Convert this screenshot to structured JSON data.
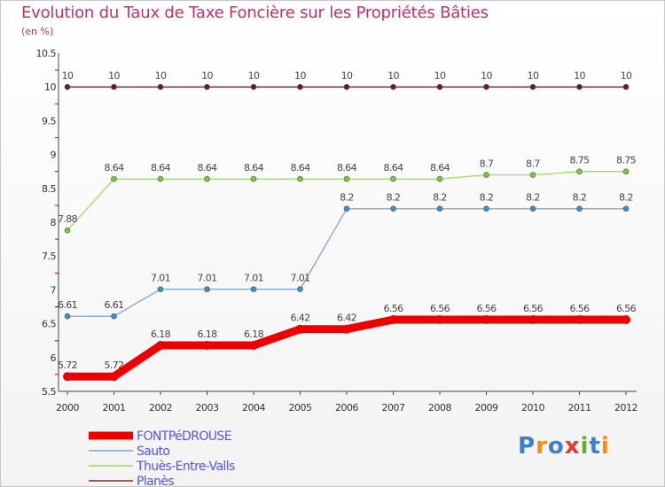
{
  "title": "Evolution du Taux de Taxe Foncière sur les Propriétés Bâties",
  "unit": "(en %)",
  "logo": {
    "text": "Proxiti",
    "letters": [
      "P",
      "r",
      "o",
      "x",
      "i",
      "t",
      "i"
    ],
    "colors": [
      "#3b7fd0",
      "#f08c1e",
      "#3b7fd0",
      "#e63b2e",
      "#5fb02e",
      "#3b7fd0",
      "#f08c1e"
    ]
  },
  "chart_data": {
    "type": "line",
    "title": "Evolution du Taux de Taxe Foncière sur les Propriétés Bâties",
    "ylabel": "(en %)",
    "xlabel": "",
    "ylim": [
      5.5,
      10.5
    ],
    "yticks": [
      "5.5",
      "6",
      "6.5",
      "7",
      "7.5",
      "8",
      "8.5",
      "9",
      "9.5",
      "10",
      "10.5"
    ],
    "categories": [
      "2000",
      "2001",
      "2002",
      "2003",
      "2004",
      "2005",
      "2006",
      "2007",
      "2008",
      "2009",
      "2010",
      "2011",
      "2012"
    ],
    "series": [
      {
        "name": "FONTPéDROUSE",
        "color": "#ee0000",
        "width": 9,
        "marker": 5,
        "values": [
          5.72,
          5.72,
          6.18,
          6.18,
          6.18,
          6.42,
          6.42,
          6.56,
          6.56,
          6.56,
          6.56,
          6.56,
          6.56
        ],
        "labels": [
          "5.72",
          "5.72",
          "6.18",
          "6.18",
          "6.18",
          "6.42",
          "6.42",
          "6.56",
          "6.56",
          "6.56",
          "6.56",
          "6.56",
          "6.56"
        ],
        "legend_color": "#5555ee"
      },
      {
        "name": "Sauto",
        "color": "#7aa6d0",
        "width": 1.3,
        "marker": 3,
        "marker_fill": "#3d8ecf",
        "values": [
          6.61,
          6.61,
          7.01,
          7.01,
          7.01,
          7.01,
          8.2,
          8.2,
          8.2,
          8.2,
          8.2,
          8.2,
          8.2
        ],
        "labels": [
          "6.61",
          "6.61",
          "7.01",
          "7.01",
          "7.01",
          "7.01",
          "8.2",
          "8.2",
          "8.2",
          "8.2",
          "8.2",
          "8.2",
          "8.2"
        ],
        "legend_color": "#5555ee"
      },
      {
        "name": "Thuès-Entre-Valls",
        "color": "#99dd66",
        "width": 1.3,
        "marker": 3,
        "marker_fill": "#77cc33",
        "values": [
          7.88,
          8.64,
          8.64,
          8.64,
          8.64,
          8.64,
          8.64,
          8.64,
          8.64,
          8.7,
          8.7,
          8.75,
          8.75
        ],
        "labels": [
          "7.88",
          "8.64",
          "8.64",
          "8.64",
          "8.64",
          "8.64",
          "8.64",
          "8.64",
          "8.64",
          "8.7",
          "8.7",
          "8.75",
          "8.75"
        ],
        "legend_color": "#5555ee"
      },
      {
        "name": "Planès",
        "color": "#7a2a2a",
        "width": 1.3,
        "marker": 3,
        "marker_fill": "#6a1a1a",
        "values": [
          10,
          10,
          10,
          10,
          10,
          10,
          10,
          10,
          10,
          10,
          10,
          10,
          10
        ],
        "labels": [
          "10",
          "10",
          "10",
          "10",
          "10",
          "10",
          "10",
          "10",
          "10",
          "10",
          "10",
          "10",
          "10"
        ],
        "legend_color": "#5555ee"
      }
    ]
  }
}
